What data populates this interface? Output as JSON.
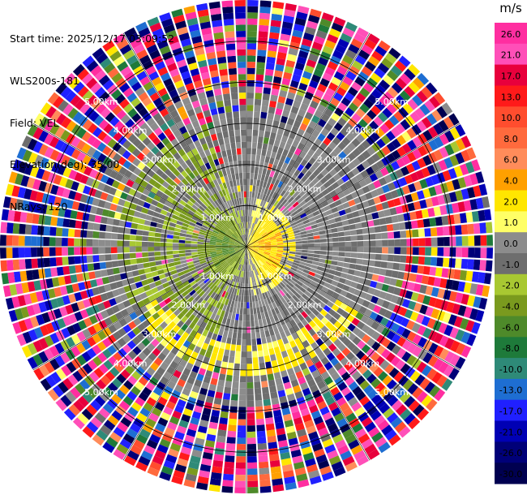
{
  "header": {
    "start_time": "Start time: 2025/12/17 03:09:52",
    "site": "WLS200s-181",
    "field": "Field: VEL",
    "elevation": "Elevation(deg): 35.00",
    "nrays": "NRays: 120"
  },
  "chart_data": {
    "type": "heatmap",
    "projection": "polar-ppi",
    "field": "VEL",
    "units": "m/s",
    "n_rays": 120,
    "range_max_km": 6.0,
    "ring_labels": [
      "1.00km",
      "2.00km",
      "3.00km",
      "4.00km",
      "5.00km"
    ],
    "colorbar": {
      "unit_label": "m/s",
      "ticks": [
        "26.0",
        "21.0",
        "17.0",
        "13.0",
        "10.0",
        "8.0",
        "6.0",
        "4.0",
        "2.0",
        "1.0",
        "0.0",
        "-1.0",
        "-2.0",
        "-4.0",
        "-6.0",
        "-8.0",
        "-10.0",
        "-13.0",
        "-17.0",
        "-21.0",
        "-26.0",
        "-30.0"
      ],
      "bins": [
        {
          "min": 26,
          "max": 30,
          "color": "#ff2ea0"
        },
        {
          "min": 21,
          "max": 26,
          "color": "#ff4fb8"
        },
        {
          "min": 17,
          "max": 21,
          "color": "#e8003c"
        },
        {
          "min": 13,
          "max": 17,
          "color": "#ff1a1a"
        },
        {
          "min": 10,
          "max": 13,
          "color": "#ff4d2e"
        },
        {
          "min": 8,
          "max": 10,
          "color": "#ff6a3d"
        },
        {
          "min": 6,
          "max": 8,
          "color": "#ff8c5a"
        },
        {
          "min": 4,
          "max": 6,
          "color": "#ffa000"
        },
        {
          "min": 2,
          "max": 4,
          "color": "#ffe600"
        },
        {
          "min": 1,
          "max": 2,
          "color": "#ffff66"
        },
        {
          "min": 0,
          "max": 1,
          "color": "#8c8c8c"
        },
        {
          "min": -1,
          "max": 0,
          "color": "#6e6e6e"
        },
        {
          "min": -2,
          "max": -1,
          "color": "#a8c832"
        },
        {
          "min": -4,
          "max": -2,
          "color": "#7a9a1e"
        },
        {
          "min": -6,
          "max": -4,
          "color": "#4e8a2a"
        },
        {
          "min": -8,
          "max": -6,
          "color": "#1e7a3a"
        },
        {
          "min": -10,
          "max": -8,
          "color": "#2e8a78"
        },
        {
          "min": -13,
          "max": -10,
          "color": "#1e6ed2"
        },
        {
          "min": -17,
          "max": -13,
          "color": "#2020ff"
        },
        {
          "min": -21,
          "max": -17,
          "color": "#0000b4"
        },
        {
          "min": -26,
          "max": -21,
          "color": "#000078"
        },
        {
          "min": -30,
          "max": -26,
          "color": "#000050"
        }
      ]
    },
    "velocity_pattern": {
      "description_values_m_s": {
        "inner_west_receding_toward": -4.0,
        "inner_east_approaching": 3.0,
        "mid_ring_mean": 0.0,
        "outer_ring": "noise"
      }
    }
  }
}
